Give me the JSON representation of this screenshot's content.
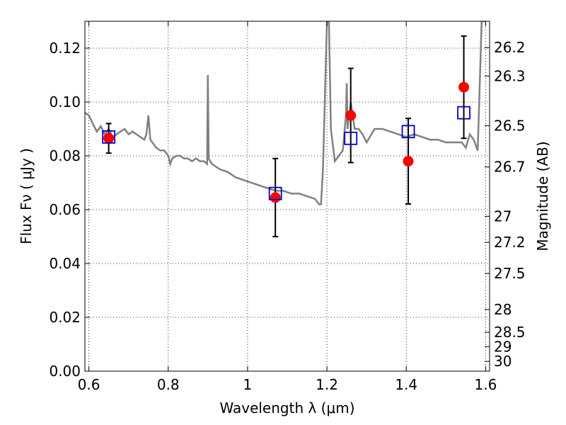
{
  "chart_data": {
    "type": "scatter",
    "xlabel": "Wavelength  λ (μm)",
    "ylabel": "Flux  Fν ( μJy )",
    "ylabel_right": "Magnitude (AB)",
    "xlim": [
      0.59,
      1.61
    ],
    "ylim": [
      0.0,
      0.13
    ],
    "grid": true,
    "x_ticks": [
      0.6,
      0.8,
      1.0,
      1.2,
      1.4,
      1.6
    ],
    "x_tick_labels": [
      "0.6",
      "0.8",
      "1",
      "1.2",
      "1.4",
      "1.6"
    ],
    "y_ticks": [
      0.0,
      0.02,
      0.04,
      0.06,
      0.08,
      0.1,
      0.12
    ],
    "y_tick_labels": [
      "0.00",
      "0.02",
      "0.04",
      "0.06",
      "0.08",
      "0.10",
      "0.12"
    ],
    "mag_ticks": [
      26.2,
      26.3,
      26.5,
      26.7,
      27,
      27.2,
      27.5,
      28,
      28.5,
      29,
      30
    ],
    "mag_tick_labels": [
      "26.2",
      "26.3",
      "26.5",
      "26.7",
      "27",
      "27.2",
      "27.5",
      "28",
      "28.5",
      "29",
      "30"
    ],
    "series": [
      {
        "kind": "line",
        "color": "#808080",
        "x": [
          0.59,
          0.6,
          0.61,
          0.62,
          0.63,
          0.64,
          0.65,
          0.66,
          0.67,
          0.68,
          0.69,
          0.7,
          0.71,
          0.72,
          0.73,
          0.74,
          0.745,
          0.75,
          0.755,
          0.76,
          0.77,
          0.78,
          0.79,
          0.8,
          0.805,
          0.81,
          0.82,
          0.83,
          0.84,
          0.85,
          0.86,
          0.87,
          0.88,
          0.89,
          0.898,
          0.9,
          0.902,
          0.91,
          0.92,
          0.93,
          0.95,
          0.97,
          0.99,
          1.01,
          1.03,
          1.05,
          1.07,
          1.09,
          1.11,
          1.13,
          1.15,
          1.17,
          1.18,
          1.185,
          1.19,
          1.2,
          1.205,
          1.21,
          1.22,
          1.23,
          1.24,
          1.248,
          1.25,
          1.252,
          1.26,
          1.27,
          1.28,
          1.29,
          1.3,
          1.32,
          1.34,
          1.36,
          1.38,
          1.4,
          1.42,
          1.44,
          1.46,
          1.48,
          1.5,
          1.52,
          1.54,
          1.55,
          1.56,
          1.57,
          1.58,
          1.59,
          1.6
        ],
        "y": [
          0.096,
          0.095,
          0.092,
          0.089,
          0.091,
          0.088,
          0.09,
          0.087,
          0.088,
          0.089,
          0.09,
          0.088,
          0.089,
          0.088,
          0.087,
          0.086,
          0.088,
          0.095,
          0.086,
          0.085,
          0.083,
          0.082,
          0.082,
          0.08,
          0.077,
          0.079,
          0.08,
          0.08,
          0.079,
          0.079,
          0.078,
          0.079,
          0.078,
          0.078,
          0.077,
          0.11,
          0.079,
          0.077,
          0.076,
          0.075,
          0.074,
          0.072,
          0.071,
          0.07,
          0.069,
          0.068,
          0.067,
          0.067,
          0.066,
          0.066,
          0.065,
          0.064,
          0.062,
          0.062,
          0.075,
          0.13,
          0.13,
          0.09,
          0.078,
          0.08,
          0.082,
          0.095,
          0.107,
          0.09,
          0.1,
          0.09,
          0.09,
          0.088,
          0.085,
          0.09,
          0.09,
          0.089,
          0.088,
          0.087,
          0.088,
          0.087,
          0.086,
          0.086,
          0.085,
          0.085,
          0.085,
          0.083,
          0.088,
          0.086,
          0.082,
          0.13,
          0.13
        ]
      },
      {
        "kind": "points",
        "marker": "circle",
        "color": "#ff0000",
        "x": [
          0.65,
          1.07,
          1.26,
          1.405,
          1.545
        ],
        "y": [
          0.0865,
          0.0645,
          0.095,
          0.078,
          0.1055
        ],
        "err": [
          0.0055,
          0.0145,
          0.0175,
          0.0159,
          0.019
        ]
      },
      {
        "kind": "points",
        "marker": "square-open",
        "color": "#0000cc",
        "x": [
          0.65,
          1.07,
          1.26,
          1.405,
          1.545
        ],
        "y": [
          0.087,
          0.066,
          0.0865,
          0.089,
          0.096
        ]
      }
    ]
  }
}
